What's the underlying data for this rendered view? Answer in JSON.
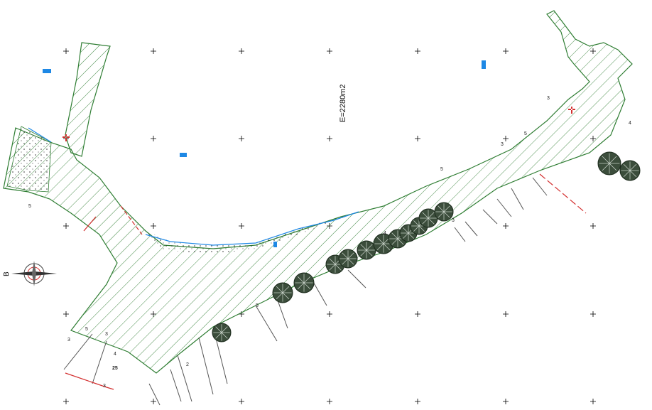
{
  "plan": {
    "area_label": "E=2280m2",
    "north_label": "B",
    "small_labels": [
      "5",
      "5",
      "3",
      "3",
      "4",
      "2",
      "5",
      "4",
      "5",
      "3",
      "3",
      "5",
      "3",
      "4",
      "3",
      "25"
    ],
    "colors": {
      "hatch": "#2e7d32",
      "outline": "#2e7d32",
      "red_line": "#d32f2f",
      "blue_line": "#1e88e5",
      "tree_dark": "#2b3a2b",
      "grid_cross": "#000000"
    }
  }
}
